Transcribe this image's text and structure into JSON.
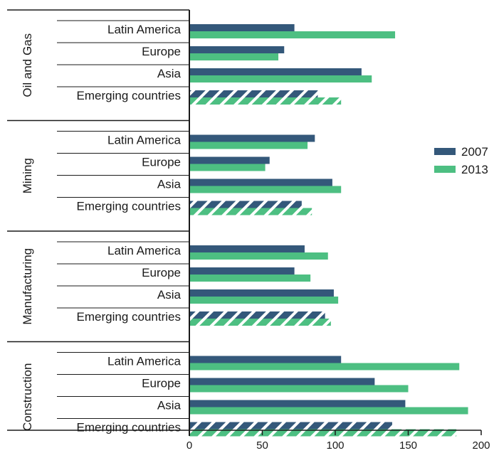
{
  "chart_data": {
    "type": "bar",
    "orientation": "horizontal",
    "groups": [
      {
        "name": "Oil and Gas",
        "categories": [
          "Latin America",
          "Europe",
          "Asia",
          "Emerging countries"
        ],
        "series": [
          {
            "name": "2007",
            "values": [
              72,
              65,
              118,
              88
            ]
          },
          {
            "name": "2013",
            "values": [
              141,
              61,
              125,
              104
            ]
          }
        ]
      },
      {
        "name": "Mining",
        "categories": [
          "Latin America",
          "Europe",
          "Asia",
          "Emerging countries"
        ],
        "series": [
          {
            "name": "2007",
            "values": [
              86,
              55,
              98,
              77
            ]
          },
          {
            "name": "2013",
            "values": [
              81,
              52,
              104,
              84
            ]
          }
        ]
      },
      {
        "name": "Manufacturing",
        "categories": [
          "Latin America",
          "Europe",
          "Asia",
          "Emerging countries"
        ],
        "series": [
          {
            "name": "2007",
            "values": [
              79,
              72,
              99,
              93
            ]
          },
          {
            "name": "2013",
            "values": [
              95,
              83,
              102,
              97
            ]
          }
        ]
      },
      {
        "name": "Construction",
        "categories": [
          "Latin America",
          "Europe",
          "Asia",
          "Emerging countries"
        ],
        "series": [
          {
            "name": "2007",
            "values": [
              104,
              127,
              148,
              139
            ]
          },
          {
            "name": "2013",
            "values": [
              185,
              150,
              191,
              183
            ]
          }
        ]
      }
    ],
    "hatched_category": "Emerging countries",
    "legend": {
      "entries": [
        "2007",
        "2013"
      ],
      "placement": "right"
    },
    "x_ticks": [
      0,
      50,
      100,
      150,
      200
    ],
    "xlim": [
      0,
      200
    ],
    "colors": {
      "2007": "#34587a",
      "2013": "#4dbf82"
    },
    "grid": false
  }
}
